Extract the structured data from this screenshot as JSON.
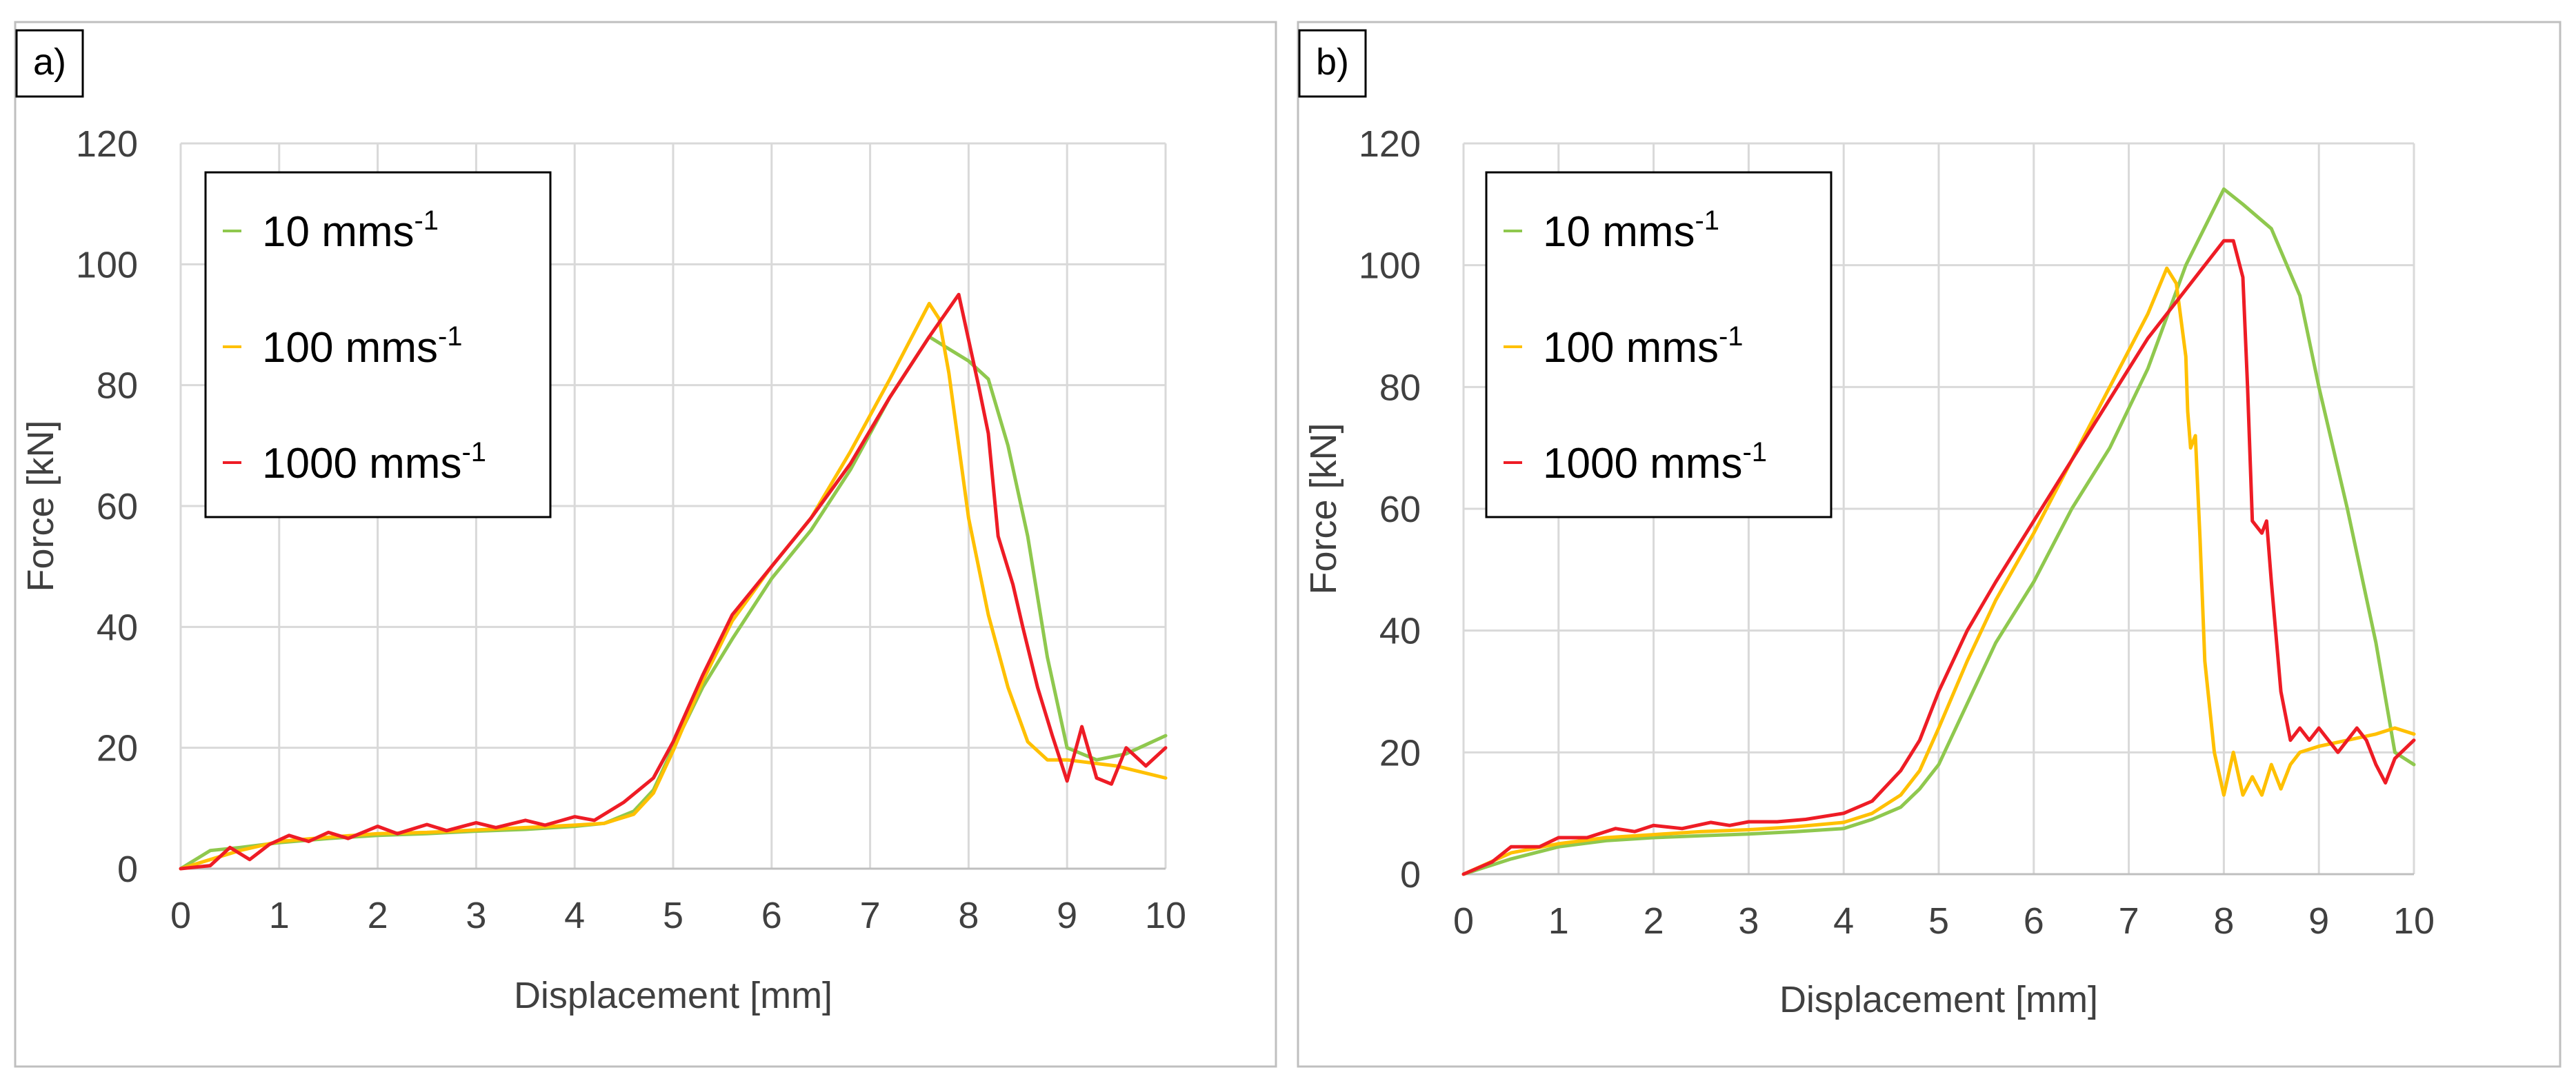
{
  "figure": {
    "panels": [
      "a)",
      "b)"
    ]
  },
  "chart_data": [
    {
      "type": "line",
      "panel_label": "a)",
      "xlabel": "Displacement [mm]",
      "ylabel": "Force [kN]",
      "xlim": [
        0,
        10
      ],
      "ylim": [
        0,
        120
      ],
      "xticks": [
        0,
        1,
        2,
        3,
        4,
        5,
        6,
        7,
        8,
        9,
        10
      ],
      "yticks": [
        0,
        20,
        40,
        60,
        80,
        100,
        120
      ],
      "grid": true,
      "legend_position": "top-left",
      "series": [
        {
          "name": "10 mms",
          "superscript": "-1",
          "color": "#8fc84e",
          "x": [
            0,
            0.3,
            0.6,
            1,
            1.5,
            2,
            2.5,
            3,
            3.5,
            4,
            4.3,
            4.6,
            4.8,
            5,
            5.3,
            5.6,
            6,
            6.4,
            6.8,
            7.2,
            7.6,
            7.8,
            8.0,
            8.2,
            8.4,
            8.6,
            8.8,
            9.0,
            9.3,
            9.6,
            10
          ],
          "y": [
            0,
            3,
            3.5,
            4.3,
            5,
            5.5,
            5.8,
            6.2,
            6.5,
            7,
            7.5,
            9.5,
            13,
            20,
            30,
            38,
            48,
            56,
            66,
            78,
            88,
            86,
            84,
            81,
            70,
            55,
            35,
            20,
            18,
            19,
            22
          ]
        },
        {
          "name": "100 mms",
          "superscript": "-1",
          "color": "#ffc000",
          "x": [
            0,
            0.3,
            0.6,
            1,
            1.5,
            2,
            2.5,
            3,
            3.5,
            4,
            4.3,
            4.6,
            4.8,
            5,
            5.3,
            5.6,
            6,
            6.4,
            6.8,
            7.2,
            7.6,
            7.7,
            7.8,
            7.9,
            8.0,
            8.2,
            8.4,
            8.6,
            8.8,
            9.0,
            9.5,
            10
          ],
          "y": [
            0,
            1.5,
            3,
            4.5,
            5.2,
            5.8,
            6,
            6.4,
            6.8,
            7.2,
            7.5,
            9,
            12.5,
            19.5,
            31,
            41,
            50,
            58,
            69,
            81,
            93.5,
            91,
            82,
            70,
            58,
            42,
            30,
            21,
            18,
            18,
            17,
            15
          ]
        },
        {
          "name": "1000 mms",
          "superscript": "-1",
          "color": "#ee1c25",
          "x": [
            0,
            0.3,
            0.5,
            0.7,
            0.9,
            1.1,
            1.3,
            1.5,
            1.7,
            2.0,
            2.2,
            2.5,
            2.7,
            3.0,
            3.2,
            3.5,
            3.7,
            4.0,
            4.2,
            4.5,
            4.8,
            5.0,
            5.3,
            5.6,
            6.0,
            6.4,
            6.8,
            7.2,
            7.6,
            7.9,
            8.1,
            8.2,
            8.3,
            8.45,
            8.55,
            8.7,
            8.85,
            9.0,
            9.15,
            9.3,
            9.45,
            9.6,
            9.8,
            10
          ],
          "y": [
            0,
            0.5,
            3.5,
            1.5,
            4,
            5.5,
            4.5,
            6,
            5,
            7,
            5.8,
            7.3,
            6.3,
            7.6,
            6.8,
            8,
            7.2,
            8.6,
            8,
            11,
            15,
            21,
            32,
            42,
            50,
            58,
            67,
            78,
            88,
            95,
            80,
            72,
            55,
            47,
            40,
            30,
            22,
            14.5,
            23.5,
            15,
            14,
            20,
            17,
            20
          ]
        }
      ]
    },
    {
      "type": "line",
      "panel_label": "b)",
      "xlabel": "Displacement [mm]",
      "ylabel": "Force [kN]",
      "xlim": [
        0,
        10
      ],
      "ylim": [
        0,
        120
      ],
      "xticks": [
        0,
        1,
        2,
        3,
        4,
        5,
        6,
        7,
        8,
        9,
        10
      ],
      "yticks": [
        0,
        20,
        40,
        60,
        80,
        100,
        120
      ],
      "grid": true,
      "legend_position": "top-left",
      "series": [
        {
          "name": "10 mms",
          "superscript": "-1",
          "color": "#8fc84e",
          "x": [
            0,
            0.5,
            1,
            1.5,
            2,
            2.5,
            3,
            3.5,
            4,
            4.3,
            4.6,
            4.8,
            5,
            5.3,
            5.6,
            6,
            6.4,
            6.8,
            7.2,
            7.6,
            8.0,
            8.2,
            8.5,
            8.8,
            9.0,
            9.3,
            9.6,
            9.8,
            10
          ],
          "y": [
            0,
            2.5,
            4.5,
            5.5,
            6,
            6.3,
            6.6,
            7,
            7.5,
            9,
            11,
            14,
            18,
            28,
            38,
            48,
            60,
            70,
            83,
            100,
            112.5,
            110,
            106,
            95,
            80,
            60,
            38,
            20,
            18
          ]
        },
        {
          "name": "100 mms",
          "superscript": "-1",
          "color": "#ffc000",
          "x": [
            0,
            0.5,
            1,
            1.5,
            2,
            2.5,
            3,
            3.5,
            4,
            4.3,
            4.6,
            4.8,
            5,
            5.3,
            5.6,
            6,
            6.4,
            6.8,
            7.2,
            7.4,
            7.5,
            7.6,
            7.62,
            7.65,
            7.7,
            7.75,
            7.8,
            7.9,
            8.0,
            8.1,
            8.2,
            8.3,
            8.4,
            8.5,
            8.6,
            8.7,
            8.8,
            9.0,
            9.3,
            9.6,
            9.8,
            10
          ],
          "y": [
            0,
            3.5,
            5,
            6,
            6.5,
            7,
            7.3,
            7.8,
            8.5,
            10,
            13,
            17,
            24,
            35,
            45,
            56,
            68,
            80,
            92,
            99.5,
            97,
            85,
            76,
            70,
            72,
            55,
            35,
            20,
            13,
            20,
            13,
            16,
            13,
            18,
            14,
            18,
            20,
            21,
            22,
            23,
            24,
            23
          ]
        },
        {
          "name": "1000 mms",
          "superscript": "-1",
          "color": "#ee1c25",
          "x": [
            0,
            0.3,
            0.5,
            0.8,
            1,
            1.3,
            1.6,
            1.8,
            2,
            2.3,
            2.6,
            2.8,
            3,
            3.3,
            3.6,
            4,
            4.3,
            4.6,
            4.8,
            5,
            5.3,
            5.6,
            6,
            6.4,
            6.8,
            7.2,
            7.6,
            7.8,
            8.0,
            8.1,
            8.2,
            8.25,
            8.3,
            8.4,
            8.45,
            8.5,
            8.6,
            8.7,
            8.8,
            8.9,
            9.0,
            9.1,
            9.2,
            9.3,
            9.4,
            9.5,
            9.6,
            9.7,
            9.8,
            10
          ],
          "y": [
            0,
            2,
            4.5,
            4.5,
            6,
            6,
            7.5,
            7,
            8,
            7.5,
            8.5,
            8,
            8.6,
            8.6,
            9,
            10,
            12,
            17,
            22,
            30,
            40,
            48,
            58,
            68,
            78,
            88,
            96,
            100,
            104,
            104,
            98,
            80,
            58,
            56,
            58,
            48,
            30,
            22,
            24,
            22,
            24,
            22,
            20,
            22,
            24,
            22,
            18,
            15,
            19,
            22
          ]
        }
      ]
    }
  ]
}
